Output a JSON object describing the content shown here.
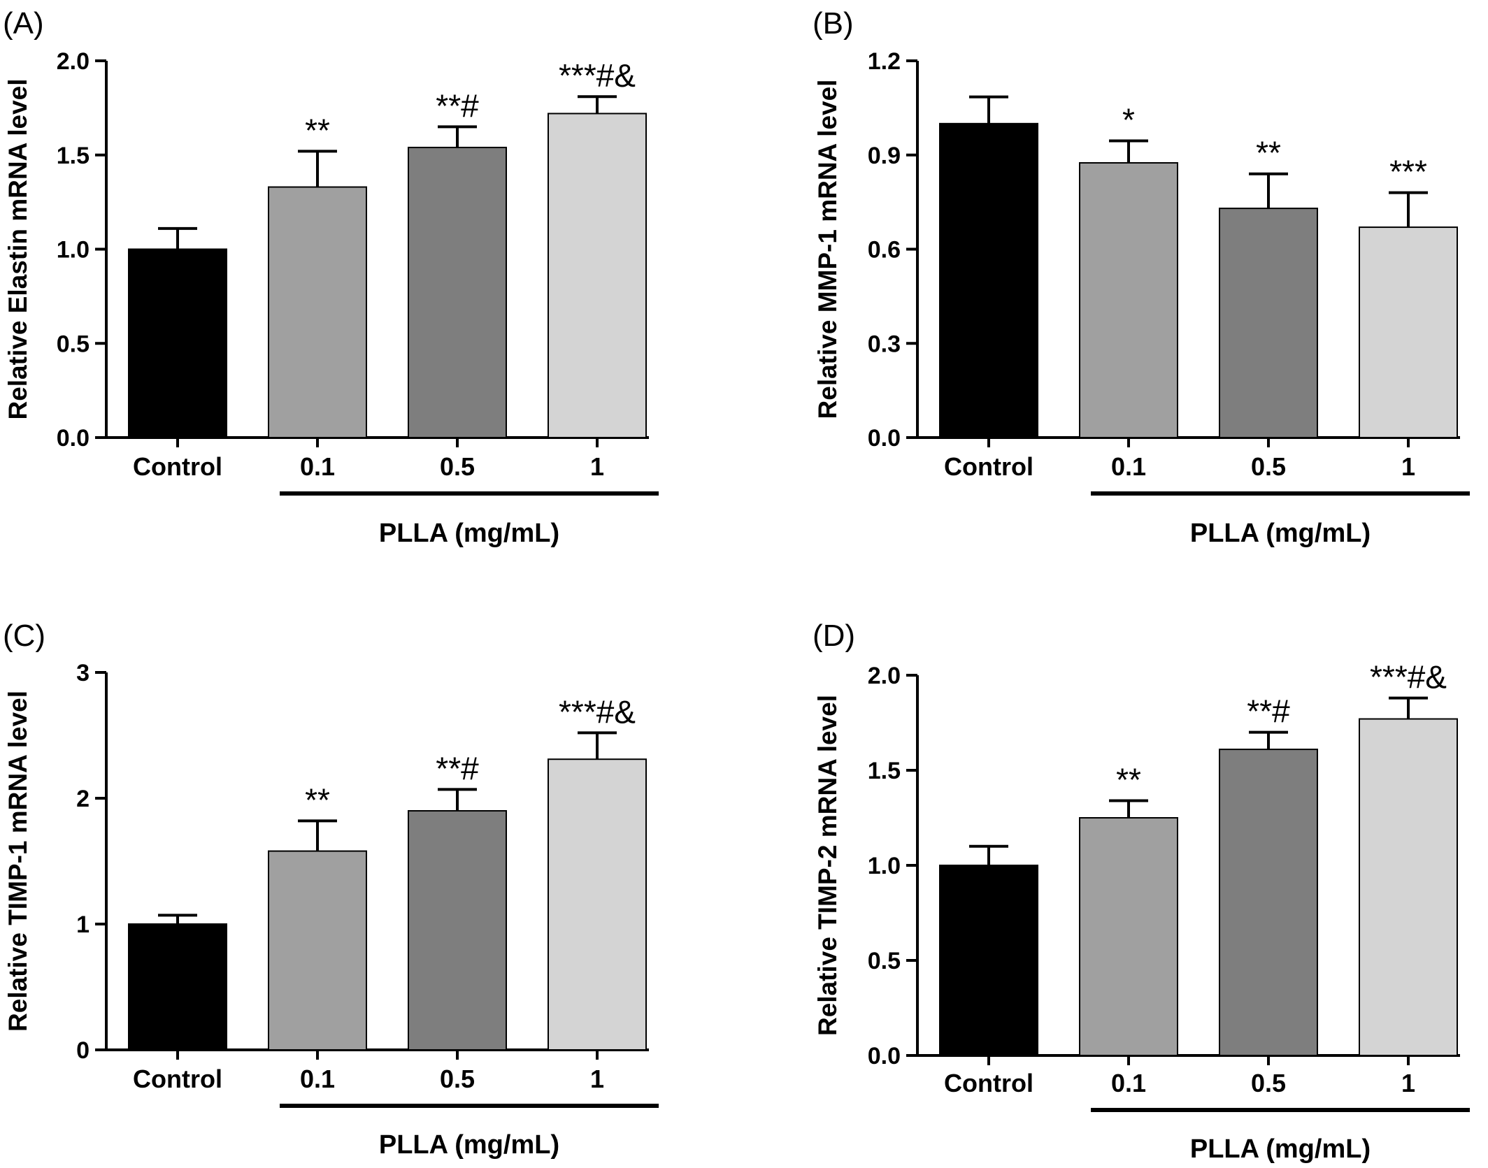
{
  "chart_data": [
    {
      "type": "bar",
      "panel": "(A)",
      "categories": [
        "Control",
        "0.1",
        "0.5",
        "1"
      ],
      "values": [
        1.0,
        1.33,
        1.54,
        1.72
      ],
      "errors": [
        0.11,
        0.19,
        0.11,
        0.09
      ],
      "annotations": [
        "",
        "**",
        "**#",
        "***#&"
      ],
      "bar_colors": [
        "#000000",
        "#a0a0a0",
        "#7e7e7e",
        "#d4d4d4"
      ],
      "ylabel": "Relative Elastin mRNA level",
      "xlabel": "PLLA (mg/mL)",
      "ylim": [
        0,
        2.0
      ],
      "yticks": [
        0.0,
        0.5,
        1.0,
        1.5,
        2.0
      ],
      "ytick_labels": [
        "0.0",
        "0.5",
        "1.0",
        "1.5",
        "2.0"
      ]
    },
    {
      "type": "bar",
      "panel": "(B)",
      "categories": [
        "Control",
        "0.1",
        "0.5",
        "1"
      ],
      "values": [
        1.0,
        0.875,
        0.73,
        0.67
      ],
      "errors": [
        0.085,
        0.07,
        0.11,
        0.11
      ],
      "annotations": [
        "",
        "*",
        "**",
        "***"
      ],
      "bar_colors": [
        "#000000",
        "#a0a0a0",
        "#7e7e7e",
        "#d4d4d4"
      ],
      "ylabel": "Relative MMP-1 mRNA level",
      "xlabel": "PLLA (mg/mL)",
      "ylim": [
        0,
        1.2
      ],
      "yticks": [
        0.0,
        0.3,
        0.6,
        0.9,
        1.2
      ],
      "ytick_labels": [
        "0.0",
        "0.3",
        "0.6",
        "0.9",
        "1.2"
      ]
    },
    {
      "type": "bar",
      "panel": "(C)",
      "categories": [
        "Control",
        "0.1",
        "0.5",
        "1"
      ],
      "values": [
        1.0,
        1.58,
        1.9,
        2.31
      ],
      "errors": [
        0.07,
        0.24,
        0.17,
        0.21
      ],
      "annotations": [
        "",
        "**",
        "**#",
        "***#&"
      ],
      "bar_colors": [
        "#000000",
        "#a0a0a0",
        "#7e7e7e",
        "#d4d4d4"
      ],
      "ylabel": "Relative TIMP-1 mRNA level",
      "xlabel": "PLLA (mg/mL)",
      "ylim": [
        0,
        3
      ],
      "yticks": [
        0,
        1,
        2,
        3
      ],
      "ytick_labels": [
        "0",
        "1",
        "2",
        "3"
      ]
    },
    {
      "type": "bar",
      "panel": "(D)",
      "categories": [
        "Control",
        "0.1",
        "0.5",
        "1"
      ],
      "values": [
        1.0,
        1.25,
        1.61,
        1.77
      ],
      "errors": [
        0.1,
        0.09,
        0.09,
        0.11
      ],
      "annotations": [
        "",
        "**",
        "**#",
        "***#&"
      ],
      "bar_colors": [
        "#000000",
        "#a0a0a0",
        "#7e7e7e",
        "#d4d4d4"
      ],
      "ylabel": "Relative TIMP-2 mRNA level",
      "xlabel": "PLLA (mg/mL)",
      "ylim": [
        0,
        2.0
      ],
      "yticks": [
        0.0,
        0.5,
        1.0,
        1.5,
        2.0
      ],
      "ytick_labels": [
        "0.0",
        "0.5",
        "1.0",
        "1.5",
        "2.0"
      ]
    }
  ]
}
